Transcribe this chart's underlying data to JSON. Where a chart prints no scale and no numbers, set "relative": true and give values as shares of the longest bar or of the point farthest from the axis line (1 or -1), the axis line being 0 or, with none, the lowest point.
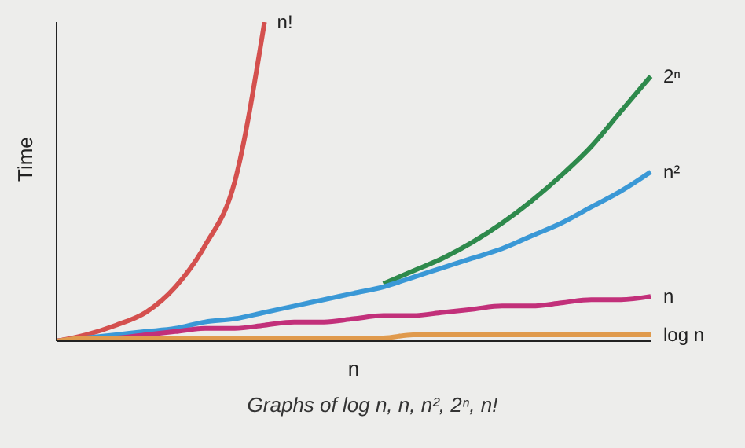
{
  "chart_data": {
    "type": "line",
    "relative": true,
    "xlabel": "n",
    "ylabel": "Time",
    "marker": "none",
    "categories": [
      null,
      null,
      null,
      null,
      null,
      null,
      null,
      null,
      null,
      null,
      null,
      null,
      null,
      null,
      null,
      null,
      null,
      null,
      null,
      null,
      null
    ],
    "series": [
      {
        "name": "n!",
        "color": "#d4504e",
        "values": [
          0,
          0.02,
          0.05,
          0.09,
          0.17,
          0.3,
          0.5,
          1.0,
          null,
          null,
          null,
          null,
          null,
          null,
          null,
          null,
          null,
          null,
          null,
          null,
          null
        ]
      },
      {
        "name": "2ⁿ",
        "color": "#2e8a4c",
        "values": [
          null,
          null,
          null,
          null,
          null,
          null,
          null,
          null,
          null,
          null,
          null,
          0.18,
          0.22,
          0.26,
          0.31,
          0.37,
          0.44,
          0.52,
          0.61,
          0.72,
          0.83
        ]
      },
      {
        "name": "n²",
        "color": "#3a98d6",
        "values": [
          0,
          0.01,
          0.02,
          0.03,
          0.04,
          0.06,
          0.07,
          0.09,
          0.11,
          0.13,
          0.15,
          0.17,
          0.2,
          0.23,
          0.26,
          0.29,
          0.33,
          0.37,
          0.42,
          0.47,
          0.53
        ]
      },
      {
        "name": "n",
        "color": "#c2307a",
        "values": [
          0,
          0.01,
          0.01,
          0.02,
          0.03,
          0.04,
          0.04,
          0.05,
          0.06,
          0.06,
          0.07,
          0.08,
          0.08,
          0.09,
          0.1,
          0.11,
          0.11,
          0.12,
          0.13,
          0.13,
          0.14
        ]
      },
      {
        "name": "log n",
        "color": "#e09a4c",
        "values": [
          0,
          0.01,
          0.01,
          0.01,
          0.01,
          0.01,
          0.01,
          0.01,
          0.01,
          0.01,
          0.01,
          0.01,
          0.02,
          0.02,
          0.02,
          0.02,
          0.02,
          0.02,
          0.02,
          0.02,
          0.02
        ]
      }
    ],
    "annotations": [
      "Graphs of log n, n, n², 2ⁿ, n!"
    ]
  }
}
